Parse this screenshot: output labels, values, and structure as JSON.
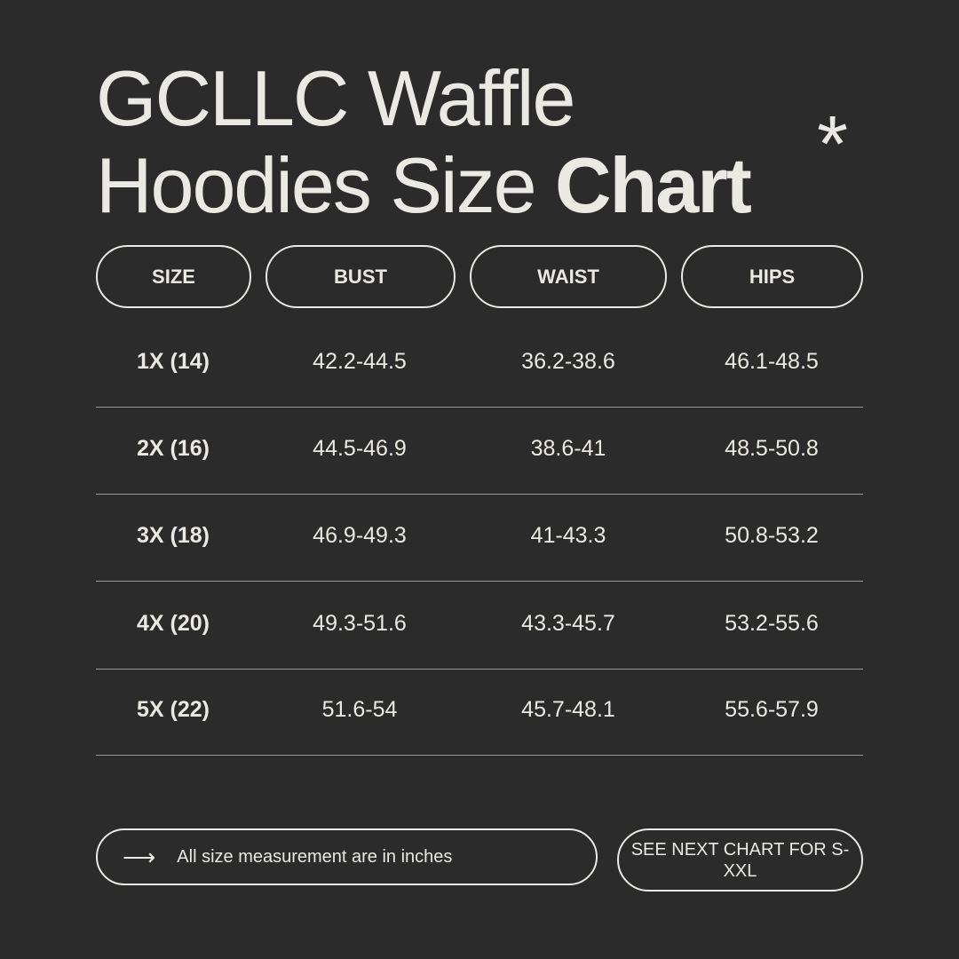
{
  "title": {
    "line1": "GCLLC Waffle",
    "line2_regular": "Hoodies Size",
    "line2_bold": "Chart",
    "decoration": "*"
  },
  "headers": [
    "SIZE",
    "BUST",
    "WAIST",
    "HIPS"
  ],
  "rows": [
    [
      "1X (14)",
      "42.2-44.5",
      "36.2-38.6",
      "46.1-48.5"
    ],
    [
      "2X (16)",
      "44.5-46.9",
      "38.6-41",
      "48.5-50.8"
    ],
    [
      "3X (18)",
      "46.9-49.3",
      "41-43.3",
      "50.8-53.2"
    ],
    [
      "4X (20)",
      "49.3-51.6",
      "43.3-45.7",
      "53.2-55.6"
    ],
    [
      "5X (22)",
      "51.6-54",
      "45.7-48.1",
      "55.6-57.9"
    ]
  ],
  "footer": {
    "arrow_icon": "arrow-right-icon",
    "note": "All size measurement are in inches",
    "next_chart": "SEE NEXT CHART FOR S-XXL"
  },
  "colors": {
    "background": "#2b2b2b",
    "text": "#ebe9e3"
  }
}
